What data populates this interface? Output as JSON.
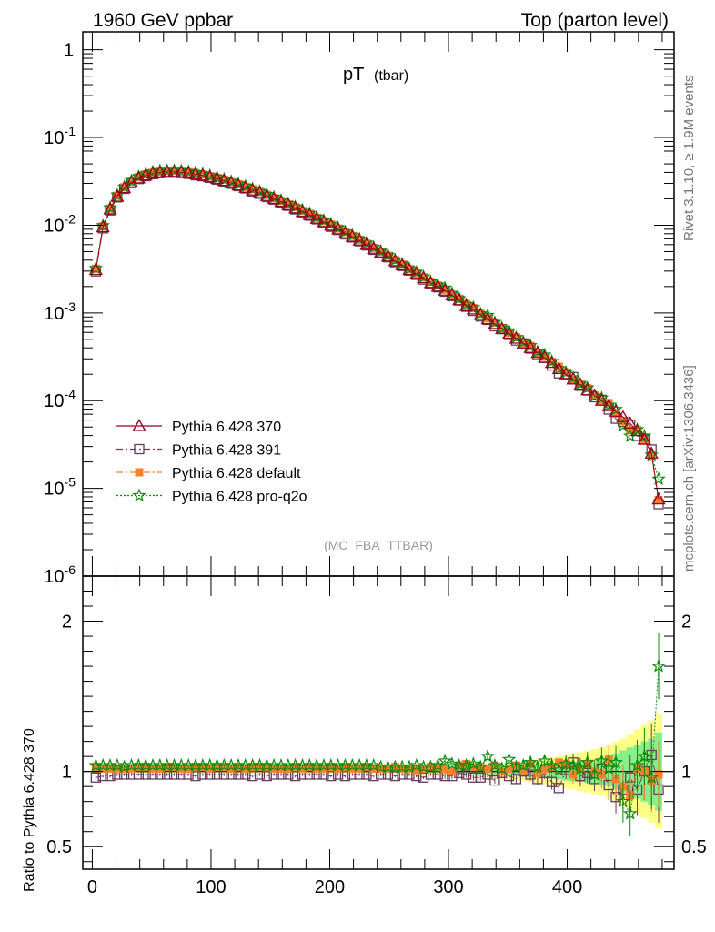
{
  "header": {
    "left": "1960 GeV ppbar",
    "right": "Top (parton level)"
  },
  "side": {
    "rivet": "Rivet 3.1.10, ≥ 1.9M events",
    "mcplots": "mcplots.cern.ch [arXiv:1306.3436]"
  },
  "plot_title": {
    "main": "pT",
    "sub": "(tbar)"
  },
  "analysis_tag": "(MC_FBA_TTBAR)",
  "chart_data": [
    {
      "type": "line",
      "panel": "main",
      "yscale": "log",
      "xlim": [
        -8,
        490
      ],
      "ylim": [
        1e-06,
        1.6
      ],
      "y_tick_labels": [
        "1",
        "10^-1",
        "10^-2",
        "10^-3",
        "10^-4",
        "10^-5",
        "10^-6"
      ],
      "bin_width": 6,
      "x": [
        3,
        9,
        15,
        21,
        27,
        33,
        39,
        45,
        51,
        57,
        63,
        69,
        75,
        81,
        87,
        93,
        99,
        105,
        111,
        117,
        123,
        129,
        135,
        141,
        147,
        153,
        159,
        165,
        171,
        177,
        183,
        189,
        195,
        201,
        207,
        213,
        219,
        225,
        231,
        237,
        243,
        249,
        255,
        261,
        267,
        273,
        279,
        285,
        291,
        297,
        303,
        309,
        315,
        321,
        327,
        333,
        339,
        345,
        351,
        357,
        363,
        369,
        375,
        381,
        387,
        393,
        399,
        405,
        411,
        417,
        423,
        429,
        435,
        441,
        447,
        453,
        459,
        465,
        471,
        477
      ],
      "reference": "Pythia 6.428 370",
      "series": [
        {
          "name": "Pythia 6.428 370",
          "color": "#990022",
          "marker": "triangle-open",
          "dash": "solid"
        },
        {
          "name": "Pythia 6.428 391",
          "color": "#6b3a5e",
          "marker": "square-open",
          "dash": "dashdot"
        },
        {
          "name": "Pythia 6.428 default",
          "color": "#ff7f2a",
          "marker": "square-filled",
          "dash": "dashdot"
        },
        {
          "name": "Pythia 6.428 pro-q2o",
          "color": "#0a8a0a",
          "marker": "star-open",
          "dash": "dotted"
        }
      ],
      "reference_values": [
        0.0031,
        0.0095,
        0.0152,
        0.0212,
        0.0265,
        0.0308,
        0.0343,
        0.037,
        0.0389,
        0.04,
        0.0405,
        0.0405,
        0.0401,
        0.0393,
        0.0382,
        0.0369,
        0.0354,
        0.0338,
        0.0321,
        0.0303,
        0.0285,
        0.0268,
        0.025,
        0.0233,
        0.0216,
        0.02,
        0.0185,
        0.017,
        0.0156,
        0.0143,
        0.0131,
        0.0119,
        0.0109,
        0.0099,
        0.009,
        0.0081,
        0.0074,
        0.0067,
        0.006,
        0.0054,
        0.0049,
        0.0044,
        0.0039,
        0.0035,
        0.0031,
        0.0028,
        0.0025,
        0.0022,
        0.002,
        0.0018,
        0.0016,
        0.0014,
        0.0012,
        0.0011,
        0.00095,
        0.00085,
        0.00075,
        0.00066,
        0.00058,
        0.00051,
        0.00045,
        0.0004,
        0.00035,
        0.00031,
        0.00027,
        0.00023,
        0.0002,
        0.000175,
        0.000152,
        0.000132,
        0.000115,
        0.0001,
        8.7e-05,
        7.5e-05,
        6.5e-05,
        5.5e-05,
        4.5e-05,
        3.6e-05,
        2.5e-05,
        7.5e-06
      ]
    },
    {
      "type": "line",
      "panel": "ratio",
      "ylabel": "Ratio to Pythia 6.428 370",
      "xlim": [
        -8,
        490
      ],
      "ylim": [
        0.35,
        2.3
      ],
      "y_tick_labels": [
        "0.5",
        "1",
        "2"
      ],
      "x_tick_labels": [
        "0",
        "100",
        "200",
        "300",
        "400"
      ],
      "band_inner": {
        "color": "#88ee88",
        "halfwidth": [
          0.005,
          0.005,
          0.005,
          0.005,
          0.005,
          0.005,
          0.005,
          0.005,
          0.005,
          0.005,
          0.005,
          0.005,
          0.005,
          0.005,
          0.005,
          0.005,
          0.005,
          0.005,
          0.005,
          0.005,
          0.005,
          0.005,
          0.005,
          0.005,
          0.005,
          0.005,
          0.005,
          0.005,
          0.005,
          0.005,
          0.005,
          0.005,
          0.005,
          0.005,
          0.005,
          0.005,
          0.005,
          0.006,
          0.006,
          0.006,
          0.006,
          0.007,
          0.007,
          0.008,
          0.008,
          0.009,
          0.01,
          0.011,
          0.012,
          0.013,
          0.014,
          0.015,
          0.016,
          0.018,
          0.019,
          0.021,
          0.023,
          0.025,
          0.027,
          0.03,
          0.033,
          0.036,
          0.04,
          0.045,
          0.05,
          0.055,
          0.06,
          0.065,
          0.07,
          0.075,
          0.08,
          0.09,
          0.1,
          0.12,
          0.14,
          0.16,
          0.18,
          0.2,
          0.22,
          0.26
        ]
      },
      "band_outer": {
        "color": "#ffff88",
        "halfwidth": [
          0.01,
          0.01,
          0.01,
          0.01,
          0.01,
          0.01,
          0.01,
          0.01,
          0.01,
          0.01,
          0.01,
          0.01,
          0.01,
          0.01,
          0.01,
          0.01,
          0.01,
          0.01,
          0.01,
          0.01,
          0.01,
          0.01,
          0.01,
          0.01,
          0.01,
          0.01,
          0.01,
          0.01,
          0.01,
          0.01,
          0.01,
          0.01,
          0.01,
          0.01,
          0.01,
          0.01,
          0.011,
          0.011,
          0.012,
          0.012,
          0.013,
          0.014,
          0.015,
          0.016,
          0.017,
          0.018,
          0.019,
          0.02,
          0.022,
          0.024,
          0.026,
          0.028,
          0.03,
          0.033,
          0.036,
          0.04,
          0.044,
          0.048,
          0.053,
          0.058,
          0.064,
          0.07,
          0.077,
          0.085,
          0.093,
          0.1,
          0.11,
          0.12,
          0.13,
          0.14,
          0.15,
          0.16,
          0.18,
          0.2,
          0.22,
          0.25,
          0.28,
          0.31,
          0.34,
          0.38
        ]
      },
      "series": [
        {
          "name": "Pythia 6.428 391",
          "values": [
            0.96,
            0.97,
            0.97,
            0.98,
            0.98,
            0.98,
            0.98,
            0.98,
            0.98,
            0.98,
            0.98,
            0.98,
            0.98,
            0.98,
            0.97,
            0.98,
            0.98,
            0.98,
            0.98,
            0.98,
            0.98,
            0.98,
            0.97,
            0.98,
            0.97,
            0.98,
            0.98,
            0.98,
            0.97,
            0.98,
            0.98,
            0.98,
            0.98,
            0.97,
            0.98,
            0.97,
            0.98,
            0.98,
            0.98,
            0.97,
            0.98,
            0.98,
            0.97,
            0.98,
            0.98,
            0.97,
            0.96,
            0.98,
            0.98,
            0.97,
            0.97,
            0.99,
            0.98,
            0.96,
            0.96,
            0.98,
            0.94,
            0.99,
            0.97,
            0.95,
            1.0,
            0.98,
            0.95,
            0.99,
            0.93,
            0.89,
            1.01,
            1.06,
            0.97,
            0.99,
            0.95,
            1.02,
            0.91,
            0.83,
            0.88,
            0.96,
            0.88,
            1.0,
            1.11,
            0.88
          ],
          "err": [
            0.01,
            0.01,
            0.01,
            0.01,
            0.01,
            0.01,
            0.01,
            0.01,
            0.01,
            0.01,
            0.01,
            0.01,
            0.01,
            0.01,
            0.01,
            0.01,
            0.01,
            0.01,
            0.01,
            0.01,
            0.01,
            0.01,
            0.01,
            0.01,
            0.01,
            0.01,
            0.01,
            0.01,
            0.01,
            0.01,
            0.01,
            0.01,
            0.01,
            0.01,
            0.01,
            0.01,
            0.01,
            0.01,
            0.01,
            0.01,
            0.01,
            0.01,
            0.01,
            0.01,
            0.01,
            0.01,
            0.01,
            0.01,
            0.01,
            0.02,
            0.02,
            0.02,
            0.02,
            0.02,
            0.02,
            0.02,
            0.02,
            0.03,
            0.03,
            0.03,
            0.03,
            0.04,
            0.04,
            0.04,
            0.05,
            0.05,
            0.06,
            0.06,
            0.07,
            0.07,
            0.08,
            0.09,
            0.1,
            0.11,
            0.14,
            0.15,
            0.17,
            0.19,
            0.21,
            0.22
          ]
        },
        {
          "name": "Pythia 6.428 default",
          "values": [
            1.03,
            1.02,
            1.02,
            1.02,
            1.02,
            1.02,
            1.03,
            1.03,
            1.02,
            1.02,
            1.03,
            1.03,
            1.02,
            1.02,
            1.03,
            1.03,
            1.02,
            1.03,
            1.03,
            1.02,
            1.03,
            1.02,
            1.03,
            1.03,
            1.03,
            1.02,
            1.02,
            1.02,
            1.03,
            1.02,
            1.03,
            1.02,
            1.02,
            1.03,
            1.02,
            1.03,
            1.02,
            1.02,
            1.03,
            1.02,
            1.02,
            1.02,
            1.03,
            1.02,
            1.02,
            1.01,
            1.02,
            1.03,
            1.03,
            1.02,
            1.0,
            1.04,
            1.05,
            1.03,
            1.03,
            1.02,
            1.04,
            1.0,
            1.02,
            1.04,
            1.01,
            1.05,
            0.99,
            1.02,
            1.03,
            1.06,
            1.05,
            0.98,
            1.02,
            1.05,
            1.0,
            0.98,
            1.08,
            0.95,
            0.9,
            0.84,
            1.02,
            1.0,
            0.94,
            0.98
          ],
          "err": [
            0.01,
            0.01,
            0.01,
            0.01,
            0.01,
            0.01,
            0.01,
            0.01,
            0.01,
            0.01,
            0.01,
            0.01,
            0.01,
            0.01,
            0.01,
            0.01,
            0.01,
            0.01,
            0.01,
            0.01,
            0.01,
            0.01,
            0.01,
            0.01,
            0.01,
            0.01,
            0.01,
            0.01,
            0.01,
            0.01,
            0.01,
            0.01,
            0.01,
            0.01,
            0.01,
            0.01,
            0.01,
            0.01,
            0.01,
            0.01,
            0.01,
            0.01,
            0.01,
            0.01,
            0.01,
            0.01,
            0.01,
            0.01,
            0.01,
            0.02,
            0.02,
            0.02,
            0.02,
            0.02,
            0.02,
            0.02,
            0.02,
            0.03,
            0.03,
            0.03,
            0.03,
            0.04,
            0.04,
            0.04,
            0.05,
            0.05,
            0.06,
            0.06,
            0.07,
            0.07,
            0.08,
            0.09,
            0.1,
            0.11,
            0.14,
            0.15,
            0.17,
            0.19,
            0.21,
            0.22
          ]
        },
        {
          "name": "Pythia 6.428 pro-q2o",
          "values": [
            1.04,
            1.04,
            1.04,
            1.04,
            1.03,
            1.04,
            1.04,
            1.04,
            1.04,
            1.04,
            1.04,
            1.04,
            1.04,
            1.04,
            1.04,
            1.04,
            1.04,
            1.04,
            1.04,
            1.04,
            1.04,
            1.04,
            1.04,
            1.04,
            1.04,
            1.04,
            1.04,
            1.04,
            1.04,
            1.04,
            1.04,
            1.04,
            1.04,
            1.04,
            1.04,
            1.04,
            1.04,
            1.04,
            1.04,
            1.04,
            1.03,
            1.03,
            1.03,
            1.03,
            1.03,
            1.04,
            1.03,
            1.03,
            1.04,
            1.07,
            1.05,
            1.04,
            1.04,
            1.05,
            1.03,
            1.1,
            1.04,
            1.02,
            1.08,
            1.03,
            1.04,
            1.06,
            1.03,
            1.07,
            1.04,
            1.01,
            1.05,
            1.04,
            1.02,
            1.06,
            0.98,
            1.07,
            1.02,
            1.06,
            0.8,
            0.72,
            1.04,
            1.1,
            0.96,
            1.7
          ],
          "err": [
            0.01,
            0.01,
            0.01,
            0.01,
            0.01,
            0.01,
            0.01,
            0.01,
            0.01,
            0.01,
            0.01,
            0.01,
            0.01,
            0.01,
            0.01,
            0.01,
            0.01,
            0.01,
            0.01,
            0.01,
            0.01,
            0.01,
            0.01,
            0.01,
            0.01,
            0.01,
            0.01,
            0.01,
            0.01,
            0.01,
            0.01,
            0.01,
            0.01,
            0.01,
            0.01,
            0.01,
            0.01,
            0.01,
            0.01,
            0.01,
            0.01,
            0.01,
            0.01,
            0.01,
            0.01,
            0.01,
            0.01,
            0.01,
            0.01,
            0.02,
            0.02,
            0.02,
            0.02,
            0.02,
            0.02,
            0.02,
            0.02,
            0.03,
            0.03,
            0.03,
            0.03,
            0.04,
            0.04,
            0.04,
            0.05,
            0.05,
            0.06,
            0.06,
            0.07,
            0.07,
            0.08,
            0.09,
            0.1,
            0.11,
            0.14,
            0.15,
            0.17,
            0.19,
            0.21,
            0.22
          ]
        }
      ]
    }
  ]
}
